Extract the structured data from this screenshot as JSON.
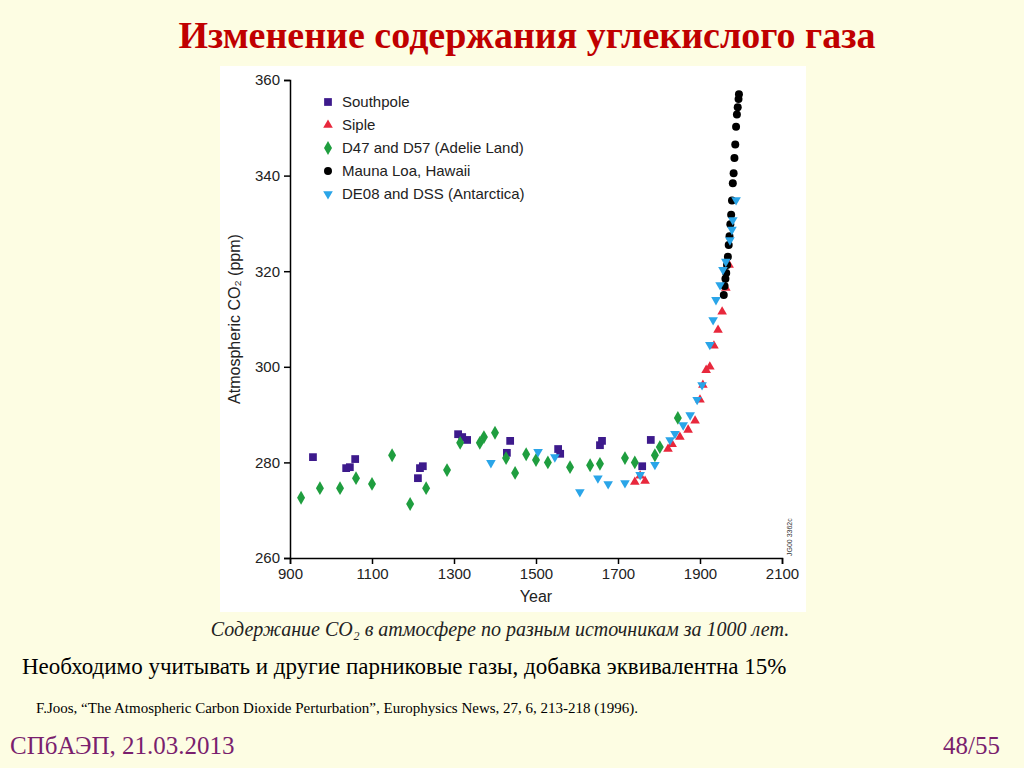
{
  "slide": {
    "title": "Изменение содержания углекислого газа",
    "caption": "Содержание CO₂ в атмосфере по разным источникам за 1000 лет.",
    "note": "Необходимо учитывать и другие парниковые газы, добавка эквивалентна 15%",
    "reference": "F.Joos, “The Atmospheric Carbon Dioxide Perturbation”, Europhysics News, 27, 6, 213-218 (1996).",
    "footer": "СПбАЭП, 21.03.2013",
    "page": "48/55"
  },
  "chart_data": {
    "type": "scatter",
    "x_label": "Year",
    "y_label": "Atmospheric CO₂ (ppm)",
    "annotations": [
      "JG00 3362c"
    ],
    "xlim": [
      900,
      2100
    ],
    "xticks": [
      900,
      1100,
      1300,
      1500,
      1700,
      1900,
      2100
    ],
    "ylim": [
      260,
      360
    ],
    "yticks": [
      260,
      280,
      300,
      320,
      340,
      360
    ],
    "legend": "top-left",
    "grid": false,
    "series": [
      {
        "name": "Southpole",
        "color": "#3d1a8c",
        "marker": "square",
        "x": [
          956,
          1037,
          1046,
          1059,
          1212,
          1217,
          1224,
          1310,
          1320,
          1332,
          1429,
          1437,
          1554,
          1559,
          1656,
          1661,
          1759,
          1780
        ],
        "values": [
          281.1,
          278.8,
          279.0,
          280.7,
          276.7,
          278.8,
          279.2,
          285.9,
          285.3,
          284.7,
          282.0,
          284.5,
          282.8,
          281.8,
          283.6,
          284.5,
          279.2,
          284.7
        ]
      },
      {
        "name": "Siple",
        "color": "#e8283c",
        "marker": "triangle-up",
        "x": [
          1741,
          1754,
          1766,
          1822,
          1832,
          1851,
          1871,
          1888,
          1900,
          1907,
          1915,
          1924,
          1934,
          1944,
          1954,
          1963,
          1971
        ],
        "values": [
          275.9,
          277.2,
          276.1,
          282.8,
          283.8,
          285.3,
          286.8,
          288.7,
          293.1,
          296.2,
          299.3,
          300.0,
          304.4,
          307.7,
          311.5,
          316.5,
          321.3
        ]
      },
      {
        "name": "D47 and D57 (Adelie Land)",
        "color": "#1f9e3f",
        "marker": "diamond",
        "x": [
          927,
          973,
          1022,
          1061,
          1100,
          1149,
          1193,
          1232,
          1283,
          1315,
          1363,
          1373,
          1400,
          1427,
          1449,
          1476,
          1500,
          1529,
          1583,
          1632,
          1656,
          1717,
          1741,
          1790,
          1802,
          1846
        ],
        "values": [
          272.6,
          274.6,
          274.6,
          276.7,
          275.5,
          281.5,
          271.3,
          274.6,
          278.4,
          284.1,
          284.1,
          285.3,
          286.2,
          280.9,
          277.8,
          281.7,
          280.5,
          280.0,
          279.0,
          279.4,
          279.7,
          280.9,
          280.0,
          281.5,
          283.2,
          289.3
        ]
      },
      {
        "name": "Mauna Loa, Hawaii",
        "color": "#000000",
        "marker": "circle",
        "x": [
          1958,
          1960,
          1962,
          1964,
          1966,
          1968,
          1970,
          1972,
          1974,
          1976,
          1978,
          1980,
          1982,
          1984,
          1986,
          1988,
          1990,
          1992,
          1994,
          1995
        ],
        "values": [
          315.0,
          316.9,
          318.4,
          319.6,
          321.3,
          323.0,
          325.5,
          327.3,
          329.8,
          331.8,
          334.8,
          338.4,
          340.5,
          343.7,
          346.5,
          350.2,
          352.8,
          354.3,
          356.0,
          357.0
        ]
      },
      {
        "name": "DE08 and DSS (Antarctica)",
        "color": "#2aa5e8",
        "marker": "triangle-down",
        "x": [
          1390,
          1505,
          1546,
          1607,
          1651,
          1676,
          1717,
          1754,
          1790,
          1827,
          1839,
          1859,
          1876,
          1893,
          1905,
          1924,
          1932,
          1939,
          1949,
          1956,
          1963,
          1973,
          1978,
          1980,
          1988
        ],
        "values": [
          279.9,
          282.2,
          281.1,
          273.8,
          276.7,
          275.5,
          275.7,
          277.4,
          279.5,
          284.7,
          286.0,
          287.8,
          289.9,
          293.1,
          296.2,
          304.6,
          309.8,
          314.0,
          317.1,
          320.3,
          322.0,
          326.5,
          328.7,
          330.7,
          334.9
        ]
      }
    ]
  }
}
